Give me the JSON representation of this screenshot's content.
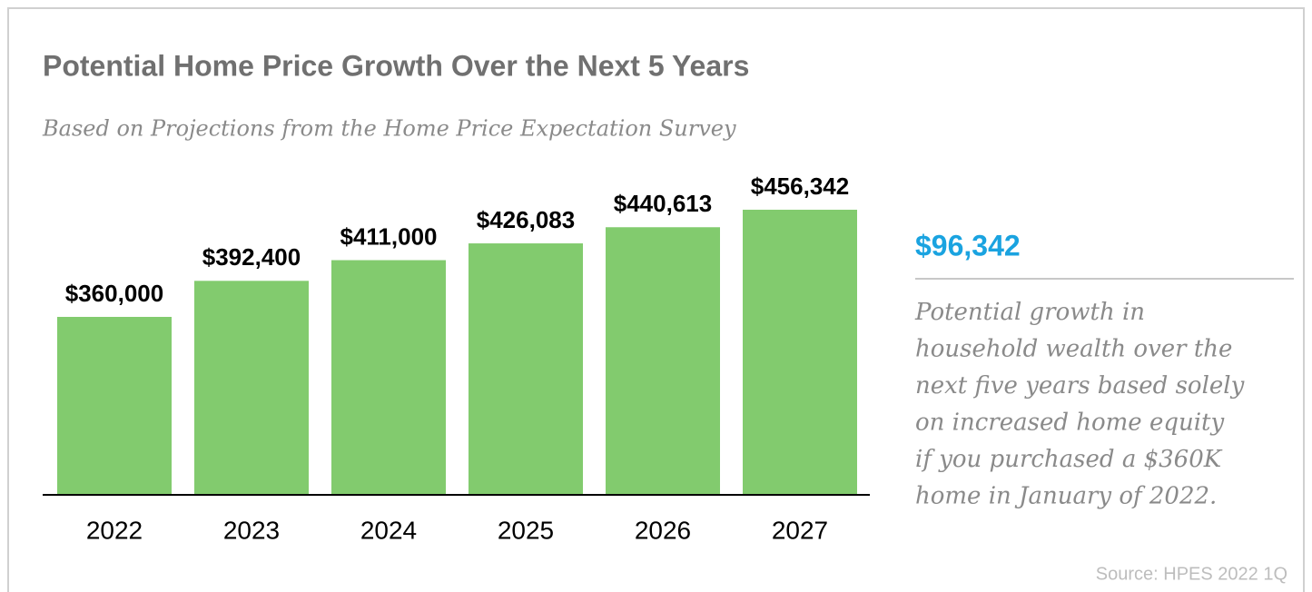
{
  "chart_data": {
    "type": "bar",
    "title": "Potential Home Price Growth Over the Next 5 Years",
    "subtitle": "Based on Projections from the Home Price Expectation Survey",
    "categories": [
      "2022",
      "2023",
      "2024",
      "2025",
      "2026",
      "2027"
    ],
    "values": [
      360000,
      392400,
      411000,
      426083,
      440613,
      456342
    ],
    "value_labels": [
      "$360,000",
      "$392,400",
      "$411,000",
      "$426,083",
      "$440,613",
      "$456,342"
    ],
    "color": "#82cb6e",
    "ylim": [
      200000,
      500000
    ],
    "callout": "$96,342",
    "callout_text": [
      "Potential growth in",
      "household wealth over the",
      "next five years based solely",
      "on increased home equity",
      "if you purchased a $360K",
      "home in January of 2022."
    ],
    "source": "Source: HPES 2022 1Q"
  }
}
